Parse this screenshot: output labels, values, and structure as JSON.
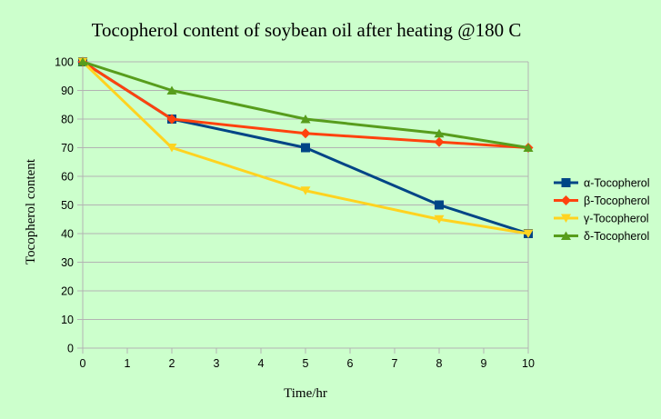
{
  "chart_data": {
    "type": "line",
    "title": "Tocopherol content of soybean oil after heating @180 C",
    "xlabel": "Time/hr",
    "ylabel": "Tocopherol content",
    "xlim": [
      0,
      10
    ],
    "ylim": [
      0,
      100
    ],
    "x_ticks": [
      "0",
      "1",
      "2",
      "3",
      "4",
      "5",
      "6",
      "7",
      "8",
      "9",
      "10"
    ],
    "y_ticks": [
      "0",
      "10",
      "20",
      "30",
      "40",
      "50",
      "60",
      "70",
      "80",
      "90",
      "100"
    ],
    "grid": "horizontal",
    "legend_position": "right",
    "x": [
      0,
      2,
      5,
      8,
      10
    ],
    "series": [
      {
        "name": "α-Tocopherol",
        "values": [
          100,
          80,
          70,
          50,
          40
        ],
        "color": "#004586",
        "marker": "square"
      },
      {
        "name": "β-Tocopherol",
        "values": [
          100,
          80,
          75,
          72,
          70
        ],
        "color": "#ff420e",
        "marker": "diamond"
      },
      {
        "name": "γ-Tocopherol",
        "values": [
          100,
          70,
          55,
          45,
          40
        ],
        "color": "#ffd320",
        "marker": "triangle-down"
      },
      {
        "name": "δ-Tocopherol",
        "values": [
          100,
          90,
          80,
          75,
          70
        ],
        "color": "#579d1c",
        "marker": "triangle-up"
      }
    ]
  }
}
